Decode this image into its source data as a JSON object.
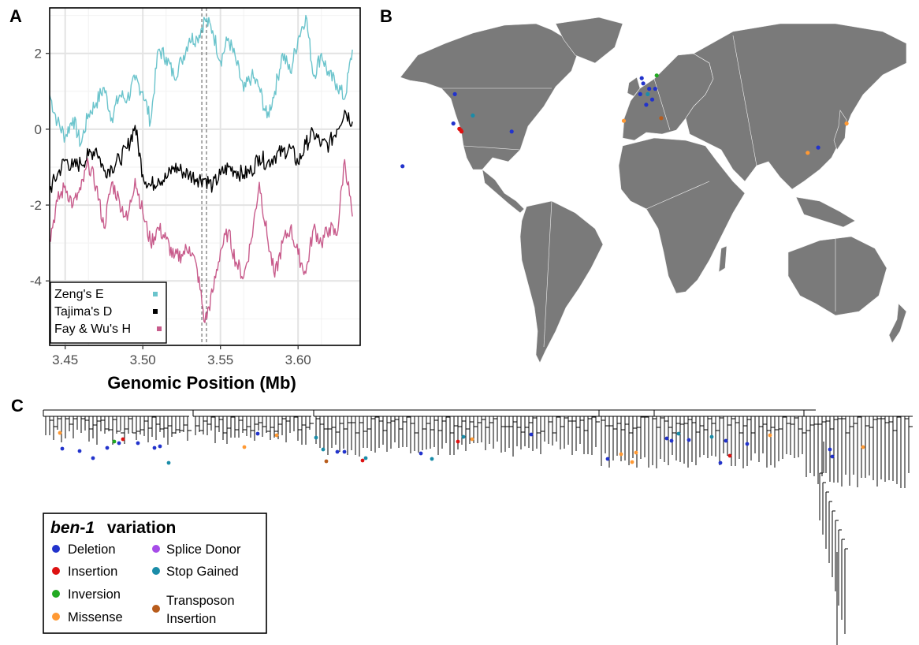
{
  "panels": {
    "a": "A",
    "b": "B",
    "c": "C"
  },
  "chart_data": [
    {
      "type": "line",
      "title": "",
      "xlabel": "Genomic Position (Mb)",
      "ylabel": "",
      "xlim": [
        3.44,
        3.64
      ],
      "ylim": [
        -5.7,
        3.2
      ],
      "grid": true,
      "x_ticks": [
        3.45,
        3.5,
        3.55,
        3.6
      ],
      "x_tick_labels": [
        "3.45",
        "3.50",
        "3.55",
        "3.60"
      ],
      "y_ticks": [
        2,
        0,
        -2,
        -4
      ],
      "y_tick_labels": [
        "2",
        "0",
        "-2",
        "-4"
      ],
      "reference_lines_x": [
        3.538,
        3.541
      ],
      "legend_position": "bottom-left",
      "x": [
        3.44,
        3.445,
        3.45,
        3.455,
        3.46,
        3.465,
        3.47,
        3.475,
        3.48,
        3.485,
        3.49,
        3.495,
        3.5,
        3.505,
        3.51,
        3.515,
        3.52,
        3.525,
        3.53,
        3.535,
        3.54,
        3.545,
        3.55,
        3.555,
        3.56,
        3.565,
        3.57,
        3.575,
        3.58,
        3.585,
        3.59,
        3.595,
        3.6,
        3.605,
        3.61,
        3.615,
        3.62,
        3.625,
        3.63,
        3.635
      ],
      "series": [
        {
          "name": "Zeng's E",
          "color": "#6bc4cc",
          "values": [
            0.9,
            0.2,
            -0.2,
            0.3,
            -0.4,
            0.4,
            0.7,
            1.1,
            0.3,
            0.9,
            0.8,
            1.3,
            1.0,
            0.2,
            2.1,
            1.9,
            1.4,
            1.8,
            2.4,
            2.4,
            2.9,
            2.6,
            1.8,
            2.4,
            1.8,
            1.0,
            1.4,
            1.1,
            0.3,
            1.0,
            2.0,
            1.5,
            2.4,
            3.0,
            1.4,
            2.0,
            1.4,
            1.2,
            0.8,
            2.1
          ]
        },
        {
          "name": "Tajima's D",
          "color": "#000000",
          "values": [
            -1.6,
            -1.2,
            -0.8,
            -1.0,
            -0.9,
            -0.7,
            -0.5,
            -1.1,
            -1.0,
            -0.8,
            -0.5,
            0.1,
            -1.2,
            -1.5,
            -1.3,
            -1.3,
            -1.0,
            -1.1,
            -1.2,
            -1.3,
            -1.3,
            -1.5,
            -1.2,
            -1.0,
            -1.1,
            -1.2,
            -1.1,
            -0.7,
            -0.9,
            -0.7,
            -0.6,
            -0.5,
            -0.9,
            -0.4,
            -0.1,
            -0.4,
            -0.4,
            0.0,
            0.5,
            0.2
          ]
        },
        {
          "name": "Fay & Wu's H",
          "color": "#c85c8c",
          "values": [
            -2.9,
            -1.9,
            -1.5,
            -2.0,
            -1.6,
            -0.9,
            -1.5,
            -2.6,
            -1.4,
            -1.9,
            -2.4,
            -1.3,
            -2.2,
            -3.0,
            -2.6,
            -2.9,
            -3.4,
            -3.3,
            -3.1,
            -3.7,
            -5.1,
            -4.3,
            -3.2,
            -2.7,
            -3.5,
            -3.9,
            -2.9,
            -1.4,
            -2.8,
            -3.9,
            -3.0,
            -2.6,
            -3.3,
            -3.8,
            -2.6,
            -3.0,
            -2.6,
            -2.8,
            -0.8,
            -2.3
          ]
        }
      ]
    },
    {
      "type": "map",
      "title": "",
      "series": [
        {
          "name": "Deletion",
          "color": "#2233cc",
          "points": [
            [
              -122,
              48
            ],
            [
              -123,
              37
            ],
            [
              -84,
              34
            ],
            [
              -157,
              21
            ],
            [
              2,
              48
            ],
            [
              4,
              52
            ],
            [
              8,
              50
            ],
            [
              10,
              46
            ],
            [
              6,
              44
            ],
            [
              3,
              54
            ],
            [
              12,
              50
            ],
            [
              121,
              28
            ]
          ]
        },
        {
          "name": "Insertion",
          "color": "#dd1111",
          "points": [
            [
              -119,
              35
            ],
            [
              -118,
              34.5
            ],
            [
              -117.5,
              34
            ]
          ]
        },
        {
          "name": "Inversion",
          "color": "#22aa22",
          "points": [
            [
              13,
              55
            ]
          ]
        },
        {
          "name": "Missense",
          "color": "#ff9933",
          "points": [
            [
              -9,
              38
            ],
            [
              114,
              26
            ],
            [
              140,
              37
            ]
          ]
        },
        {
          "name": "Stop Gained",
          "color": "#1a8ca8",
          "points": [
            [
              -110,
              40
            ],
            [
              7,
              48
            ]
          ]
        },
        {
          "name": "Transposon Insertion",
          "color": "#b85c1c",
          "points": [
            [
              16,
              39
            ]
          ]
        }
      ]
    },
    {
      "type": "tree",
      "title": "",
      "series": [
        {
          "name": "Deletion",
          "color": "#2233cc",
          "count": 22
        },
        {
          "name": "Insertion",
          "color": "#dd1111",
          "count": 4
        },
        {
          "name": "Inversion",
          "color": "#22aa22",
          "count": 1
        },
        {
          "name": "Missense",
          "color": "#ff9933",
          "count": 9
        },
        {
          "name": "Stop Gained",
          "color": "#1a8ca8",
          "count": 8
        },
        {
          "name": "Transposon Insertion",
          "color": "#b85c1c",
          "count": 1
        }
      ]
    }
  ],
  "legend_a": [
    {
      "label": "Zeng's E",
      "color": "#6bc4cc"
    },
    {
      "label": "Tajima's D",
      "color": "#000000"
    },
    {
      "label": "Fay & Wu's H",
      "color": "#c85c8c"
    }
  ],
  "legend_c": {
    "title_italic": "ben-1",
    "title_rest": "variation",
    "items": [
      {
        "label": "Deletion",
        "color": "#2233cc"
      },
      {
        "label": "Insertion",
        "color": "#dd1111"
      },
      {
        "label": "Inversion",
        "color": "#22aa22"
      },
      {
        "label": "Missense",
        "color": "#ff9933"
      },
      {
        "label": "Splice Donor",
        "color": "#a64ce8"
      },
      {
        "label": "Stop Gained",
        "color": "#1a8ca8"
      },
      {
        "label": "Transposon",
        "color": "#b85c1c"
      },
      {
        "label": "Insertion",
        "color": "#b85c1c"
      }
    ]
  },
  "map_colors": {
    "land": "#7a7a7a",
    "border": "#f2f2f2"
  }
}
